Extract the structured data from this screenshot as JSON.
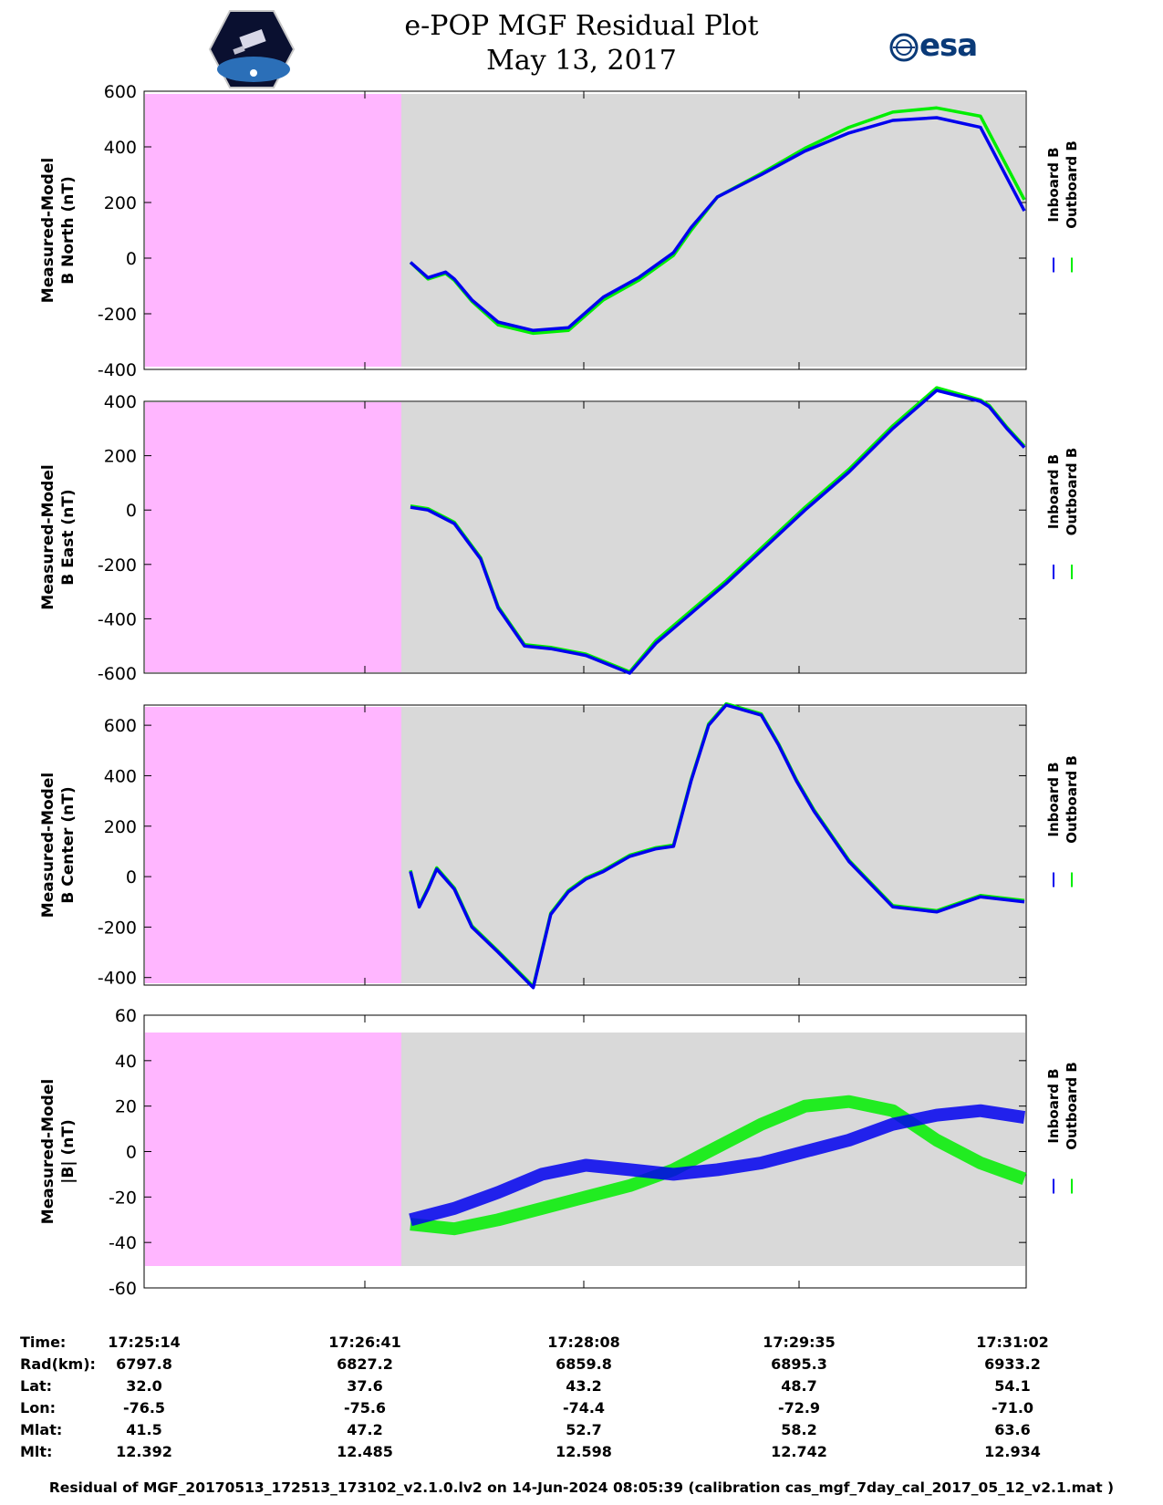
{
  "header": {
    "title": "e-POP MGF Residual Plot",
    "date": "May 13, 2017",
    "left_logo": "cassiope-mission-logo",
    "right_logo": "esa-logo",
    "right_logo_text": "esa"
  },
  "colors": {
    "inboard": "#0000ee",
    "outboard": "#00ee00",
    "no_data_band": "#ffb6ff",
    "plot_bg": "#d9d9d9"
  },
  "chart_data": [
    {
      "type": "line",
      "ylabel_line1": "Measured-Model",
      "ylabel_line2": "B North (nT)",
      "ylim": [
        -400,
        600
      ],
      "yticks": [
        "600",
        "400",
        "200",
        "0",
        "-200",
        "-400"
      ],
      "legend": [
        "Inboard B",
        "Outboard B"
      ],
      "series": [
        {
          "name": "Inboard B",
          "x": [
            30,
            32,
            34,
            35,
            37,
            40,
            44,
            48,
            52,
            56,
            60,
            62,
            65,
            70,
            75,
            80,
            85,
            90,
            95,
            100
          ],
          "y": [
            -15,
            -70,
            -50,
            -75,
            -150,
            -230,
            -260,
            -250,
            -140,
            -70,
            20,
            110,
            220,
            300,
            385,
            450,
            495,
            505,
            470,
            170
          ]
        },
        {
          "name": "Outboard B",
          "x": [
            30,
            32,
            34,
            35,
            37,
            40,
            44,
            48,
            52,
            56,
            60,
            62,
            65,
            70,
            75,
            80,
            85,
            90,
            95,
            100
          ],
          "y": [
            -15,
            -75,
            -55,
            -80,
            -155,
            -240,
            -270,
            -260,
            -150,
            -80,
            10,
            100,
            220,
            305,
            395,
            470,
            525,
            540,
            510,
            210
          ]
        }
      ]
    },
    {
      "type": "line",
      "ylabel_line1": "Measured-Model",
      "ylabel_line2": "B East (nT)",
      "ylim": [
        -600,
        400
      ],
      "yticks": [
        "400",
        "200",
        "0",
        "-200",
        "-400",
        "-600"
      ],
      "legend": [
        "Inboard B",
        "Outboard B"
      ],
      "series": [
        {
          "name": "Inboard B",
          "x": [
            30,
            32,
            35,
            38,
            40,
            43,
            46,
            50,
            55,
            58,
            62,
            66,
            70,
            75,
            80,
            85,
            90,
            95,
            96,
            98,
            100
          ],
          "y": [
            10,
            0,
            -50,
            -180,
            -360,
            -500,
            -510,
            -535,
            -600,
            -490,
            -380,
            -270,
            -150,
            0,
            140,
            300,
            440,
            400,
            380,
            300,
            230
          ]
        },
        {
          "name": "Outboard B",
          "x": [
            30,
            32,
            35,
            38,
            40,
            43,
            46,
            50,
            55,
            58,
            62,
            66,
            70,
            75,
            80,
            85,
            90,
            95,
            96,
            98,
            100
          ],
          "y": [
            15,
            5,
            -45,
            -175,
            -355,
            -495,
            -505,
            -530,
            -595,
            -480,
            -370,
            -260,
            -140,
            10,
            150,
            310,
            450,
            405,
            385,
            305,
            235
          ]
        }
      ]
    },
    {
      "type": "line",
      "ylabel_line1": "Measured-Model",
      "ylabel_line2": "B Center (nT)",
      "ylim": [
        -430,
        680
      ],
      "yticks": [
        "600",
        "400",
        "200",
        "0",
        "-200",
        "-400"
      ],
      "legend": [
        "Inboard B",
        "Outboard B"
      ],
      "series": [
        {
          "name": "Inboard B",
          "x": [
            30,
            31,
            32,
            33,
            35,
            37,
            40,
            44,
            46,
            48,
            50,
            52,
            55,
            58,
            60,
            62,
            64,
            66,
            70,
            72,
            74,
            76,
            80,
            85,
            90,
            95,
            100
          ],
          "y": [
            20,
            -120,
            -50,
            30,
            -50,
            -200,
            -300,
            -440,
            -150,
            -60,
            -10,
            20,
            80,
            110,
            120,
            380,
            600,
            680,
            640,
            520,
            380,
            260,
            60,
            -120,
            -140,
            -80,
            -100
          ]
        },
        {
          "name": "Outboard B",
          "x": [
            30,
            31,
            32,
            33,
            35,
            37,
            40,
            44,
            46,
            48,
            50,
            52,
            55,
            58,
            60,
            62,
            64,
            66,
            70,
            72,
            74,
            76,
            80,
            85,
            90,
            95,
            100
          ],
          "y": [
            25,
            -115,
            -45,
            35,
            -45,
            -195,
            -295,
            -435,
            -145,
            -55,
            -5,
            25,
            85,
            115,
            125,
            385,
            605,
            685,
            645,
            525,
            385,
            265,
            65,
            -115,
            -135,
            -75,
            -95
          ]
        }
      ]
    },
    {
      "type": "line",
      "ylabel_line1": "Measured-Model",
      "ylabel_line2": "|B| (nT)",
      "ylim": [
        -60,
        60
      ],
      "yticks": [
        "60",
        "40",
        "20",
        "0",
        "-20",
        "-40",
        "-60"
      ],
      "legend": [
        "Inboard B",
        "Outboard B"
      ],
      "series": [
        {
          "name": "Inboard B",
          "x": [
            30,
            35,
            40,
            45,
            50,
            55,
            60,
            65,
            70,
            75,
            80,
            85,
            90,
            95,
            100
          ],
          "y": [
            -30,
            -25,
            -18,
            -10,
            -6,
            -8,
            -10,
            -8,
            -5,
            0,
            5,
            12,
            16,
            18,
            15
          ]
        },
        {
          "name": "Outboard B",
          "x": [
            30,
            35,
            40,
            45,
            50,
            55,
            60,
            65,
            70,
            75,
            80,
            85,
            90,
            95,
            100
          ],
          "y": [
            -32,
            -34,
            -30,
            -25,
            -20,
            -15,
            -8,
            2,
            12,
            20,
            22,
            18,
            5,
            -5,
            -12
          ]
        }
      ]
    }
  ],
  "footer": {
    "row_labels": [
      "Time:",
      "Rad(km):",
      "Lat:",
      "Lon:",
      "Mlat:",
      "Mlt:"
    ],
    "columns": [
      {
        "time": "17:25:14",
        "rad": "6797.8",
        "lat": "32.0",
        "lon": "-76.5",
        "mlat": "41.5",
        "mlt": "12.392"
      },
      {
        "time": "17:26:41",
        "rad": "6827.2",
        "lat": "37.6",
        "lon": "-75.6",
        "mlat": "47.2",
        "mlt": "12.485"
      },
      {
        "time": "17:28:08",
        "rad": "6859.8",
        "lat": "43.2",
        "lon": "-74.4",
        "mlat": "52.7",
        "mlt": "12.598"
      },
      {
        "time": "17:29:35",
        "rad": "6895.3",
        "lat": "48.7",
        "lon": "-72.9",
        "mlat": "58.2",
        "mlt": "12.742"
      },
      {
        "time": "17:31:02",
        "rad": "6933.2",
        "lat": "54.1",
        "lon": "-71.0",
        "mlat": "63.6",
        "mlt": "12.934"
      }
    ],
    "footnote": "Residual of MGF_20170513_172513_173102_v2.1.0.lv2 on 14-Jun-2024 08:05:39 (calibration cas_mgf_7day_cal_2017_05_12_v2.1.mat )"
  }
}
